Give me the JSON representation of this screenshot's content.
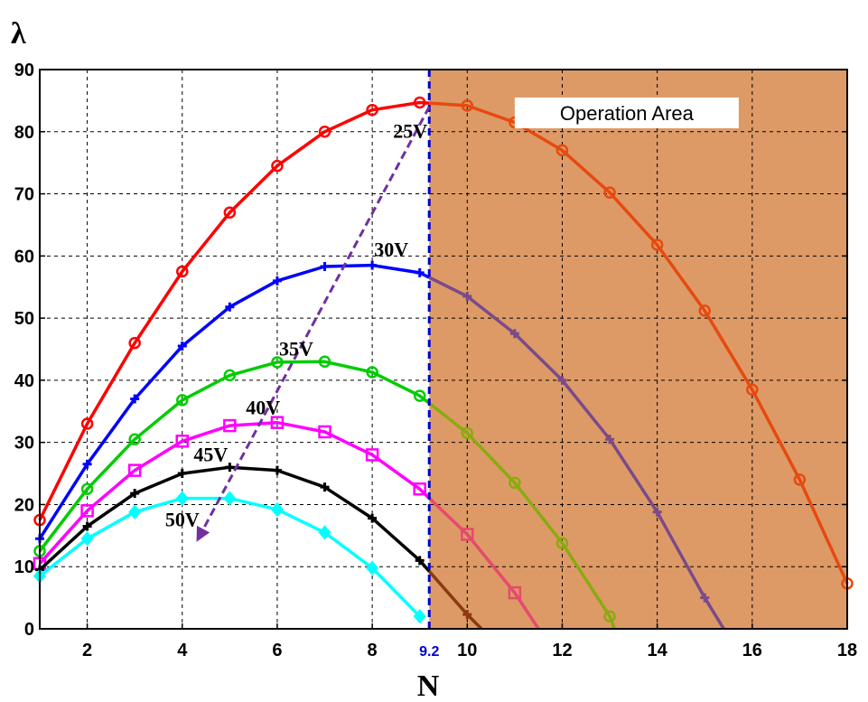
{
  "chart_data": {
    "type": "line",
    "xlabel": "N",
    "ylabel": "λ",
    "xlim": [
      1,
      18
    ],
    "ylim": [
      0,
      90
    ],
    "xticks": [
      2,
      4,
      6,
      8,
      10,
      12,
      14,
      16,
      18
    ],
    "yticks": [
      0,
      10,
      20,
      30,
      40,
      50,
      60,
      70,
      80,
      90
    ],
    "grid": true,
    "vline": {
      "x": 9.2,
      "label": "9.2",
      "color": "#0000cc"
    },
    "operation_area": {
      "x_from": 9.2,
      "x_to": 18,
      "label": "Operation Area",
      "color": "#dd9a66"
    },
    "arrow": {
      "from": [
        9.2,
        84
      ],
      "to": [
        4.3,
        14
      ],
      "color": "#7030a0"
    },
    "series": [
      {
        "label": "25V",
        "color": "#ff0000",
        "color_in_area": "#e64a10",
        "marker": "circle",
        "x": [
          1,
          2,
          3,
          4,
          5,
          6,
          7,
          8,
          9,
          10,
          11,
          12,
          13,
          14,
          15,
          16,
          17,
          18
        ],
        "y": [
          17.5,
          33,
          46,
          57.5,
          67,
          74.5,
          80,
          83.5,
          84.7,
          84.2,
          81.5,
          77,
          70.2,
          61.8,
          51.2,
          38.5,
          24,
          7.3
        ]
      },
      {
        "label": "30V",
        "color": "#0000ff",
        "color_in_area": "#7a4a8a",
        "marker": "plus",
        "x": [
          1,
          2,
          3,
          4,
          5,
          6,
          7,
          8,
          9,
          10,
          11,
          12,
          13,
          14,
          15,
          15.4
        ],
        "y": [
          14.5,
          26.5,
          37,
          45.5,
          51.8,
          56,
          58.3,
          58.5,
          57.3,
          53.5,
          47.5,
          40,
          30.5,
          18.8,
          5,
          0
        ]
      },
      {
        "label": "35V",
        "color": "#00cc00",
        "color_in_area": "#8aaa10",
        "marker": "circle",
        "x": [
          1,
          2,
          3,
          4,
          5,
          6,
          7,
          8,
          9,
          10,
          11,
          12,
          13,
          13.1
        ],
        "y": [
          12.5,
          22.5,
          30.5,
          36.8,
          40.8,
          42.9,
          43,
          41.3,
          37.5,
          31.5,
          23.5,
          13.8,
          2,
          0
        ]
      },
      {
        "label": "40V",
        "color": "#ff00ff",
        "color_in_area": "#e64a6e",
        "marker": "square",
        "x": [
          1,
          2,
          3,
          4,
          5,
          6,
          7,
          8,
          9,
          10,
          11,
          11.5
        ],
        "y": [
          10.5,
          19,
          25.5,
          30.2,
          32.7,
          33.2,
          31.7,
          28,
          22.5,
          15.2,
          5.8,
          0
        ]
      },
      {
        "label": "45V",
        "color": "#000000",
        "color_in_area": "#8a3a10",
        "marker": "plus",
        "x": [
          1,
          2,
          3,
          4,
          5,
          6,
          7,
          8,
          9,
          10,
          10.3
        ],
        "y": [
          9.5,
          16.5,
          21.8,
          25,
          26,
          25.5,
          22.8,
          17.8,
          11,
          2.3,
          0
        ]
      },
      {
        "label": "50V",
        "color": "#00ffff",
        "color_in_area": "#00ffff",
        "marker": "diamond",
        "x": [
          1,
          2,
          3,
          4,
          5,
          6,
          7,
          8,
          9
        ],
        "y": [
          8.5,
          14.5,
          18.8,
          21,
          21,
          19.2,
          15.5,
          9.8,
          2
        ]
      }
    ],
    "series_labels": [
      {
        "text": "25V",
        "x": 8.8,
        "y": 79
      },
      {
        "text": "30V",
        "x": 8.4,
        "y": 60
      },
      {
        "text": "35V",
        "x": 6.4,
        "y": 44
      },
      {
        "text": "40V",
        "x": 5.7,
        "y": 34.5
      },
      {
        "text": "45V",
        "x": 4.6,
        "y": 27
      },
      {
        "text": "50V",
        "x": 4.0,
        "y": 16.5
      }
    ]
  }
}
